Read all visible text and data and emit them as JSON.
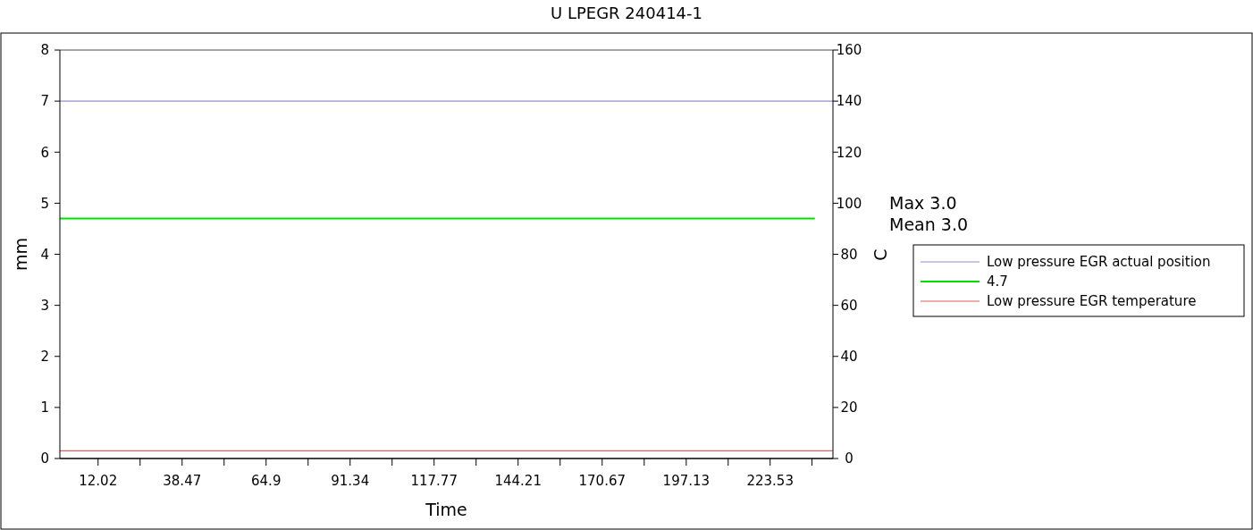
{
  "chart_data": {
    "type": "line",
    "title": "U   LPEGR 240414-1",
    "xlabel": "Time",
    "ylabel": "mm",
    "y2label": "C",
    "xlim": [
      0,
      243.3
    ],
    "ylim": [
      0,
      8
    ],
    "y2lim": [
      0,
      160
    ],
    "xticks": [
      12.02,
      {
        "value": 25.245,
        "label": null
      },
      38.47,
      {
        "value": 51.685,
        "label": null
      },
      64.9,
      {
        "value": 78.12,
        "label": null
      },
      91.34,
      {
        "value": 104.555,
        "label": null
      },
      117.77,
      {
        "value": 130.99,
        "label": null
      },
      144.21,
      {
        "value": 157.44,
        "label": null
      },
      170.67,
      {
        "value": 183.9,
        "label": null
      },
      197.13,
      {
        "value": 210.33,
        "label": null
      },
      223.53,
      {
        "value": 236.7,
        "label": null
      }
    ],
    "yticks": [
      0,
      1,
      2,
      3,
      4,
      5,
      6,
      7,
      8
    ],
    "y2ticks": [
      0,
      20,
      40,
      60,
      80,
      100,
      120,
      140,
      160
    ],
    "series": [
      {
        "name": "Low pressure EGR actual position",
        "color": "#9090cc",
        "x": [
          0,
          243.3
        ],
        "values": [
          7,
          7
        ]
      },
      {
        "name": "4.7",
        "color": "#00e000",
        "x": [
          0,
          237.6
        ],
        "values": [
          4.7,
          4.7
        ]
      },
      {
        "name": "Low pressure EGR temperature",
        "color": "#e06060",
        "axis": "y2",
        "x": [
          0,
          243.3
        ],
        "values": [
          3.0,
          3.0
        ]
      }
    ],
    "annotations": [
      "Max  3.0",
      "Mean  3.0"
    ],
    "legend": "right",
    "grid": false
  }
}
